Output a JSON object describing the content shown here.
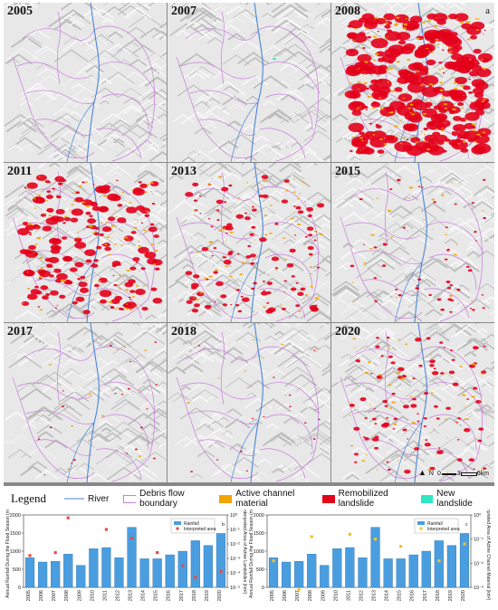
{
  "panels": [
    {
      "year": "2005",
      "letter": "a",
      "density": 0
    },
    {
      "year": "2007",
      "letter": "",
      "density": 0
    },
    {
      "year": "2008",
      "letter": "",
      "density": 3
    },
    {
      "year": "2011",
      "letter": "",
      "density": 2
    },
    {
      "year": "2013",
      "letter": "",
      "density": 1.2
    },
    {
      "year": "2015",
      "letter": "",
      "density": 0.5
    },
    {
      "year": "2017",
      "letter": "",
      "density": 0.2
    },
    {
      "year": "2018",
      "letter": "",
      "density": 0.15
    },
    {
      "year": "2020",
      "letter": "",
      "density": 1
    }
  ],
  "map": {
    "scale_labels": [
      "0",
      "3",
      "6"
    ],
    "scale_unit": "km",
    "north_arrow": "N"
  },
  "legend": {
    "title": "Legend",
    "items": [
      {
        "label": "River",
        "color": "#4a86d6",
        "kind": "line"
      },
      {
        "label": "Debris flow boundary",
        "color": "#c77ddb",
        "kind": "box"
      },
      {
        "label": "Active channel material",
        "color": "#f0a500",
        "kind": "fill"
      },
      {
        "label": "Remobilized landslide",
        "color": "#e3001b",
        "kind": "fill"
      },
      {
        "label": "New landslide",
        "color": "#2ee6c4",
        "kind": "fill"
      }
    ]
  },
  "chart_data": [
    {
      "type": "bar",
      "panel": "b",
      "categories": [
        "2005",
        "2006",
        "2007",
        "2008",
        "2009",
        "2010",
        "2011",
        "2012",
        "2013",
        "2014",
        "2015",
        "2016",
        "2017",
        "2018",
        "2019",
        "2020"
      ],
      "tick_labels": [
        "2005",
        "2006",
        "2007",
        "2008",
        "2009",
        "2010",
        "2011",
        "2012",
        "2013",
        "2014",
        "2015",
        "2016",
        "2017",
        "2018",
        "2019",
        "2020"
      ],
      "ylabel": "Annual Rainfall During the Flood Season (mm)",
      "y2label": "Interpreted Area of Active Landslides (km²)",
      "ylim": [
        0,
        2000
      ],
      "yticks": [
        "0",
        "500",
        "1000",
        "1500",
        "2000"
      ],
      "y2ticks": [
        "10⁰",
        "10⁻¹",
        "10⁻²",
        "10⁻³",
        "10⁻⁴",
        "10⁻⁵"
      ],
      "series": [
        {
          "name": "Rainfall",
          "kind": "bar",
          "color": "#4a9ee0",
          "values": [
            820,
            700,
            720,
            920,
            610,
            1070,
            1100,
            820,
            1660,
            790,
            790,
            900,
            1000,
            1290,
            1160,
            1490
          ]
        },
        {
          "name": "Interpreted area",
          "kind": "scatter",
          "color": "#e84a4a",
          "exp": [
            -2.8,
            null,
            -2.6,
            -0.2,
            null,
            null,
            -1.0,
            null,
            -1.6,
            null,
            -2.6,
            null,
            -3.5,
            -4.3,
            null,
            -3.9
          ]
        }
      ],
      "legend_entries": [
        "Rainfall",
        "Interpreted area"
      ]
    },
    {
      "type": "bar",
      "panel": "c",
      "categories": [
        "2005",
        "2006",
        "2007",
        "2008",
        "2009",
        "2010",
        "2011",
        "2012",
        "2013",
        "2014",
        "2015",
        "2016",
        "2017",
        "2018",
        "2019",
        "2020"
      ],
      "tick_labels": [
        "2005",
        "2006",
        "2007",
        "2008",
        "2009",
        "2010",
        "2011",
        "2012",
        "2013",
        "2014",
        "2015",
        "2016",
        "2017",
        "2018",
        "2019",
        "2020"
      ],
      "ylabel": "Annual Rainfall During the Flood Season (mm)",
      "y2label": "Interpreted Area of Active Channel Material (km²)",
      "ylim": [
        0,
        2000
      ],
      "yticks": [
        "0",
        "500",
        "1000",
        "1500",
        "2000"
      ],
      "y2ticks": [
        "10⁰",
        "10⁻¹",
        "10⁻²",
        "10⁻³"
      ],
      "series": [
        {
          "name": "Rainfall",
          "kind": "bar",
          "color": "#4a9ee0",
          "values": [
            820,
            700,
            720,
            920,
            610,
            1070,
            1100,
            820,
            1660,
            790,
            790,
            900,
            1000,
            1290,
            1160,
            1490
          ]
        },
        {
          "name": "Interpreted area",
          "kind": "scatter",
          "color": "#f2c12e",
          "exp": [
            -1.9,
            null,
            -3.1,
            -0.9,
            null,
            null,
            -0.8,
            null,
            -1.0,
            null,
            -1.3,
            null,
            null,
            -1.9,
            null,
            -1.2
          ]
        }
      ],
      "legend_entries": [
        "Rainfall",
        "Interpreted area"
      ]
    }
  ]
}
